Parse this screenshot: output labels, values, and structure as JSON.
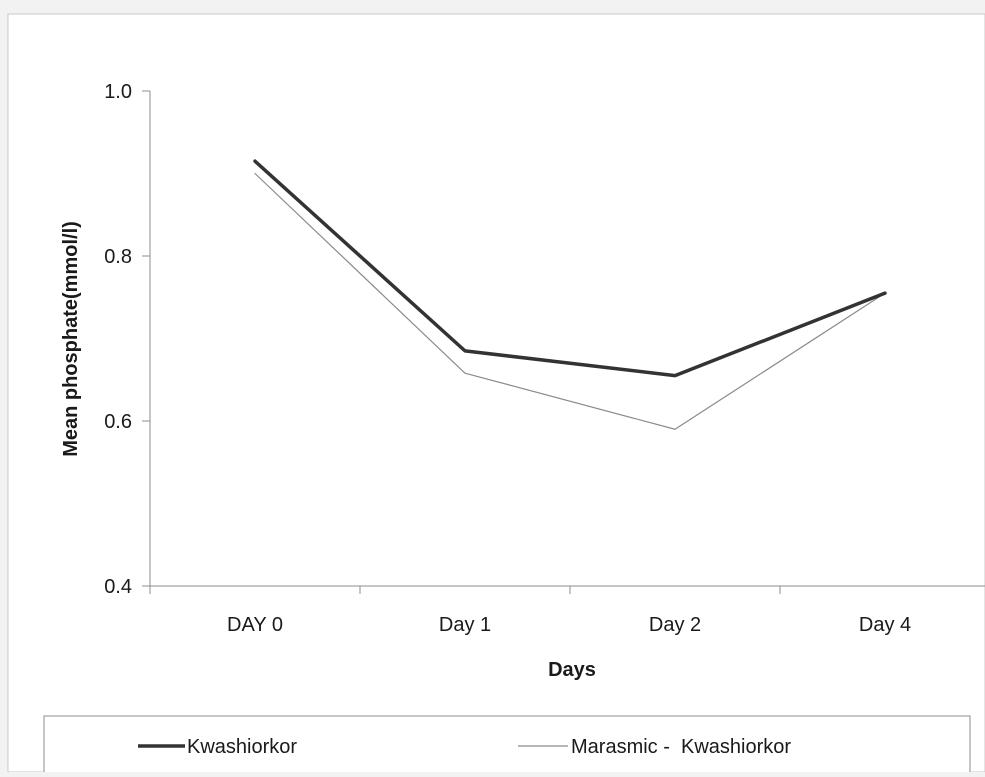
{
  "chart_data": {
    "type": "line",
    "title": "",
    "xlabel": "Days",
    "ylabel": "Mean phosphate(mmol/l)",
    "categories": [
      "DAY 0",
      "Day 1",
      "Day 2",
      "Day 4"
    ],
    "ylim": [
      0.4,
      1.0
    ],
    "yticks": [
      "1.0",
      "0.8",
      "0.6",
      "0.4"
    ],
    "grid": false,
    "legend_position": "bottom",
    "series": [
      {
        "name": "Kwashiorkor",
        "values": [
          0.915,
          0.685,
          0.655,
          0.755
        ],
        "color": "#333333",
        "style": "thick"
      },
      {
        "name": "Marasmic -  Kwashiorkor",
        "values": [
          0.9,
          0.658,
          0.59,
          0.755
        ],
        "color": "#8a8a8a",
        "style": "thin"
      }
    ]
  }
}
